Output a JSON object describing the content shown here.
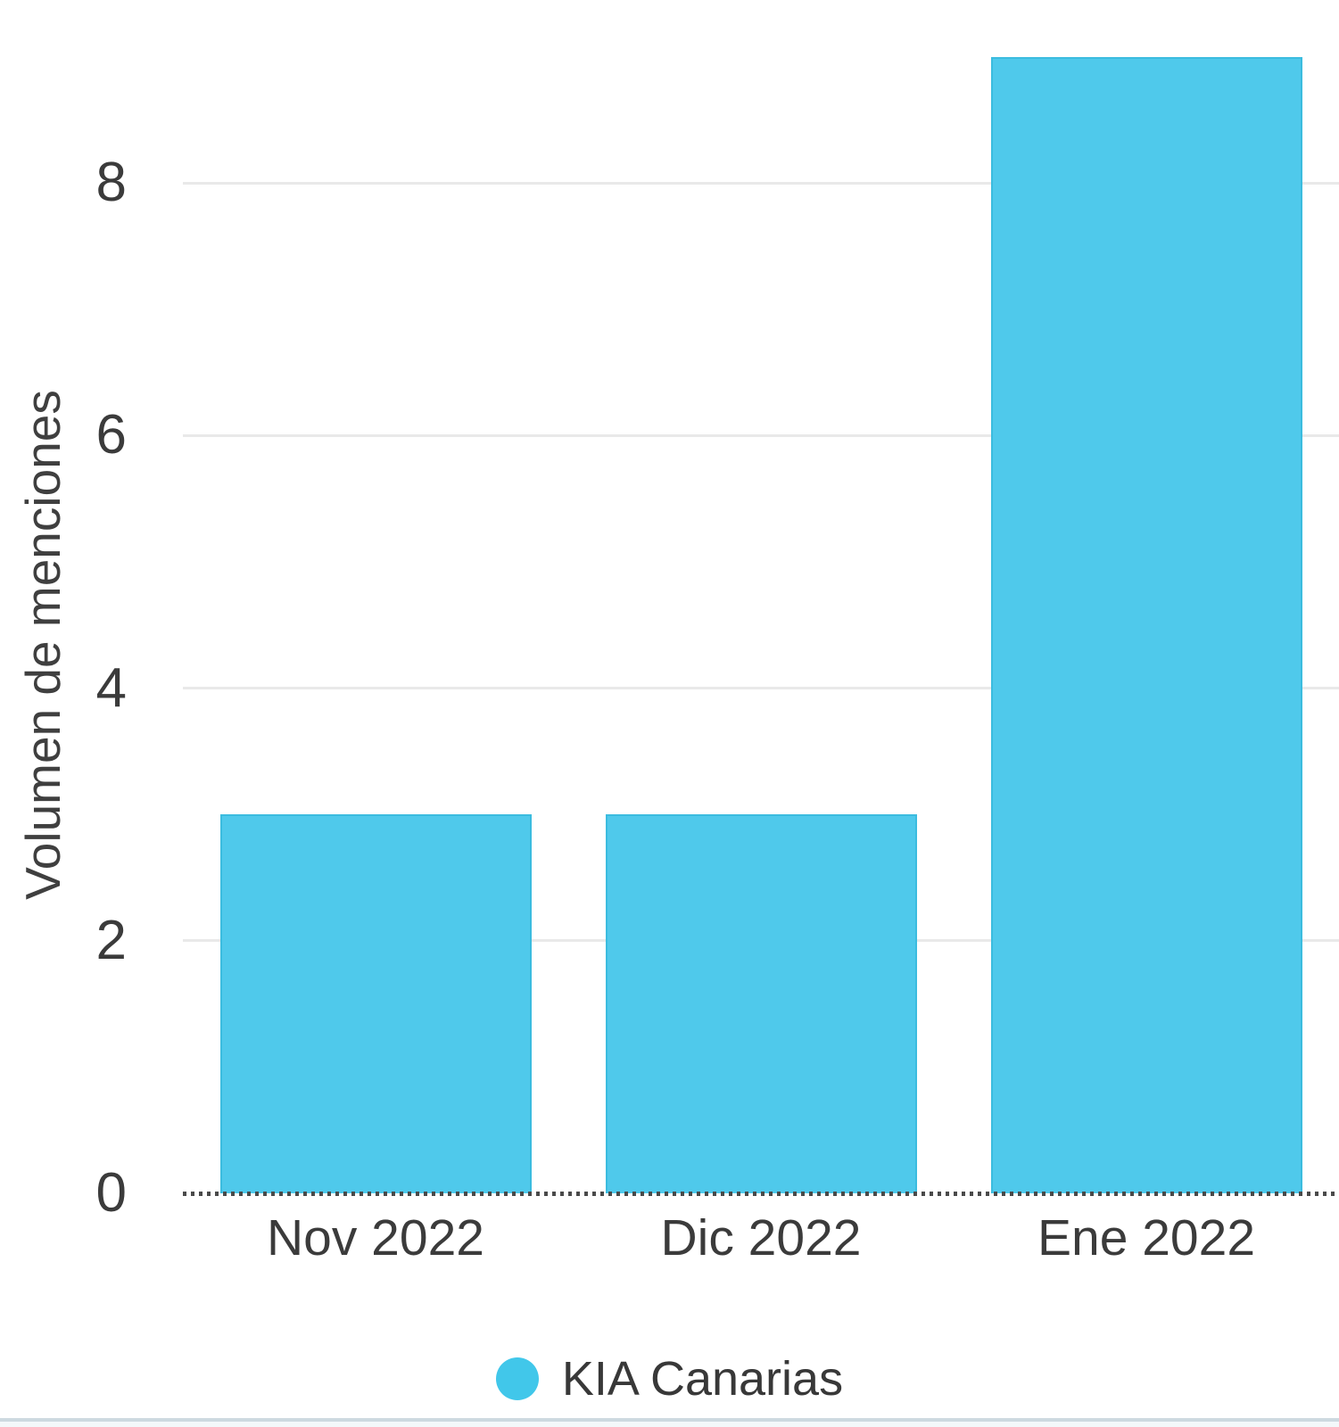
{
  "chart_data": {
    "type": "bar",
    "categories": [
      "Nov 2022",
      "Dic 2022",
      "Ene 2022"
    ],
    "series": [
      {
        "name": "KIA Canarias",
        "values": [
          3,
          3,
          9
        ]
      }
    ],
    "title": "",
    "xlabel": "",
    "ylabel": "Volumen de menciones",
    "ylim": [
      0,
      9.45
    ],
    "yticks": [
      0,
      2,
      4,
      6,
      8
    ],
    "grid": true,
    "legend_position": "bottom"
  },
  "colors": {
    "bar_fill": "#4FC9EB",
    "bar_border": "#3BBCDF",
    "legend_dot": "#41C7EA",
    "gridline": "#E9E9E9",
    "zero_line": "#4A4A4A",
    "axis_text": "#3B3B3B",
    "bottom_rule": "#CDD9E0"
  }
}
